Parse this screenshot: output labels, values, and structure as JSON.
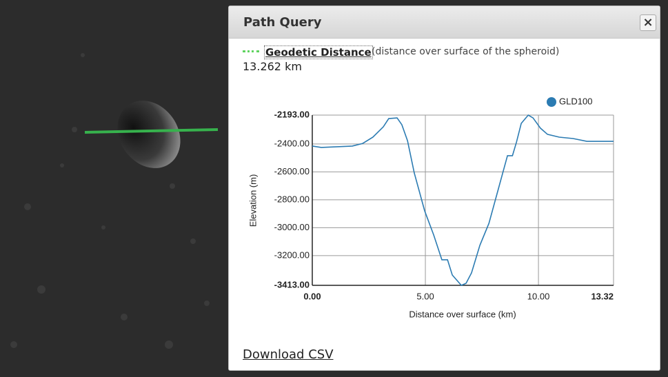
{
  "panel": {
    "title": "Path Query",
    "close": "×",
    "measure": {
      "link": "Geodetic Distance",
      "note": "(distance over surface of the spheroid)",
      "value": "13.262 km"
    },
    "download": "Download CSV"
  },
  "chart_data": {
    "type": "line",
    "x_label": "Distance over surface (km)",
    "y_label": "Elevation (m)",
    "legend": "top-right",
    "x": [
      0,
      0.4,
      1.77,
      2.23,
      2.68,
      3.14,
      3.38,
      3.75,
      3.96,
      4.21,
      4.51,
      4.97,
      5.37,
      5.73,
      5.98,
      6.19,
      6.59,
      6.8,
      7.04,
      7.41,
      7.81,
      8.17,
      8.63,
      8.85,
      9.03,
      9.24,
      9.55,
      9.76,
      10.09,
      10.4,
      10.92,
      11.53,
      12.14,
      13.32
    ],
    "series": [
      {
        "name": "GLD100",
        "color": "#2b7bb2",
        "values": [
          -2415,
          -2425,
          -2415,
          -2396,
          -2351,
          -2277,
          -2218,
          -2213,
          -2262,
          -2376,
          -2608,
          -2880,
          -3053,
          -3230,
          -3230,
          -3339,
          -3413,
          -3398,
          -3324,
          -3126,
          -2969,
          -2756,
          -2484,
          -2484,
          -2386,
          -2252,
          -2193,
          -2213,
          -2287,
          -2331,
          -2351,
          -2361,
          -2381,
          -2381
        ]
      }
    ],
    "xlim": [
      0,
      13.32
    ],
    "ylim": [
      -3413,
      -2193
    ],
    "xticks": [
      {
        "value": 0,
        "label": "0.00"
      },
      {
        "value": 5,
        "label": "5.00"
      },
      {
        "value": 10,
        "label": "10.00"
      },
      {
        "value": 13.32,
        "label": "13.32"
      }
    ],
    "yticks": [
      {
        "value": -2193,
        "label": "-2193.00"
      },
      {
        "value": -2400,
        "label": "-2400.00"
      },
      {
        "value": -2600,
        "label": "-2600.00"
      },
      {
        "value": -2800,
        "label": "-2800.00"
      },
      {
        "value": -3000,
        "label": "-3000.00"
      },
      {
        "value": -3200,
        "label": "-3200.00"
      },
      {
        "value": -3413,
        "label": "-3413.00"
      }
    ],
    "grid": true
  }
}
